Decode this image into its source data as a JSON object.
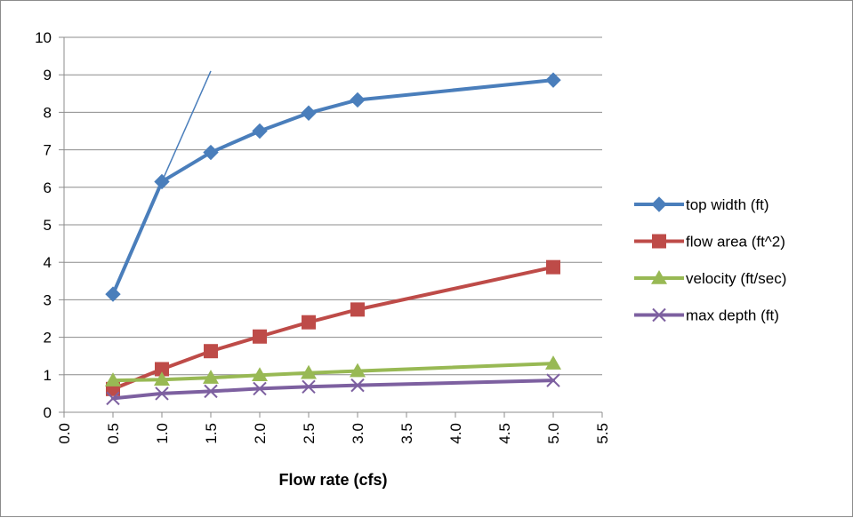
{
  "chart_data": {
    "type": "line",
    "xlabel": "Flow rate (cfs)",
    "ylabel": "",
    "xlim": [
      0.0,
      5.5
    ],
    "ylim": [
      0,
      10
    ],
    "x_ticks": [
      "0.0",
      "0.5",
      "1.0",
      "1.5",
      "2.0",
      "2.5",
      "3.0",
      "3.5",
      "4.0",
      "4.5",
      "5.0",
      "5.5"
    ],
    "y_ticks": [
      "0",
      "1",
      "2",
      "3",
      "4",
      "5",
      "6",
      "7",
      "8",
      "9",
      "10"
    ],
    "grid": "horizontal",
    "legend_position": "right",
    "x": [
      0.5,
      1.0,
      1.5,
      2.0,
      2.5,
      3.0,
      5.0
    ],
    "series": [
      {
        "name": "top width (ft)",
        "color": "#4a7ebb",
        "marker": "diamond",
        "values": [
          3.15,
          6.15,
          6.93,
          7.5,
          7.98,
          8.33,
          8.86
        ]
      },
      {
        "name": "flow area (ft^2)",
        "color": "#be4b48",
        "marker": "square",
        "values": [
          0.62,
          1.15,
          1.63,
          2.02,
          2.4,
          2.74,
          3.87
        ]
      },
      {
        "name": "velocity (ft/sec)",
        "color": "#98b954",
        "marker": "triangle",
        "values": [
          0.85,
          0.87,
          0.92,
          0.99,
          1.05,
          1.1,
          1.3
        ]
      },
      {
        "name": "max depth (ft)",
        "color": "#7d60a0",
        "marker": "x",
        "values": [
          0.37,
          0.5,
          0.56,
          0.63,
          0.68,
          0.72,
          0.85
        ]
      }
    ],
    "annotations": [
      {
        "type": "line",
        "color": "#4a7ebb",
        "from": [
          1.0,
          6.15
        ],
        "to": [
          1.5,
          9.1
        ]
      }
    ]
  }
}
